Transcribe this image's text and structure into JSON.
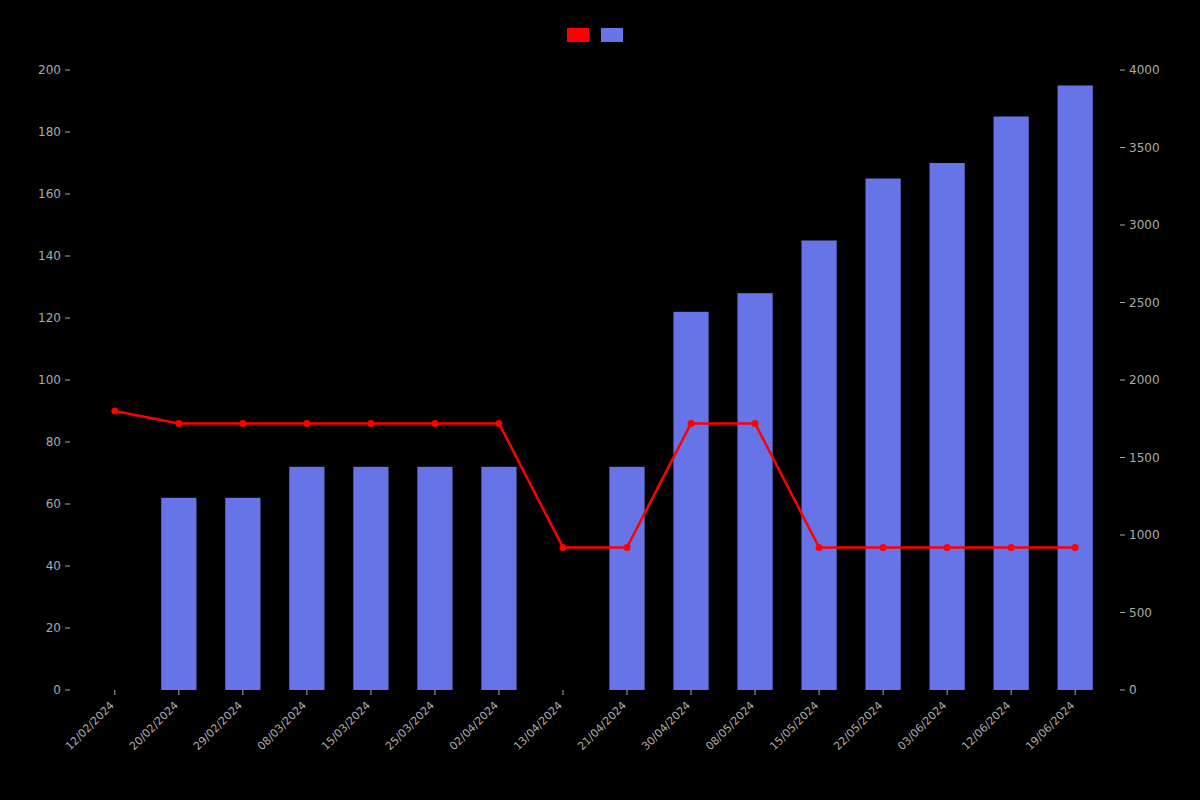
{
  "chart_data": {
    "type": "bar",
    "categories": [
      "12/02/2024",
      "20/02/2024",
      "29/02/2024",
      "08/03/2024",
      "15/03/2024",
      "25/03/2024",
      "02/04/2024",
      "13/04/2024",
      "21/04/2024",
      "30/04/2024",
      "08/05/2024",
      "15/05/2024",
      "22/05/2024",
      "03/06/2024",
      "12/06/2024",
      "19/06/2024"
    ],
    "series": [
      {
        "type": "bar",
        "color": "#6674E8",
        "values": [
          0,
          62,
          62,
          72,
          72,
          72,
          72,
          0,
          72,
          122,
          128,
          145,
          165,
          170,
          185,
          195
        ]
      },
      {
        "type": "line",
        "color": "#FF0000",
        "marker": "circle",
        "values": [
          90,
          86,
          86,
          86,
          86,
          86,
          86,
          46,
          46,
          86,
          86,
          46,
          46,
          46,
          46,
          46
        ]
      }
    ],
    "ylim": [
      0,
      200
    ],
    "yticks": [
      0,
      20,
      40,
      60,
      80,
      100,
      120,
      140,
      160,
      180,
      200
    ],
    "y2lim": [
      0,
      4000
    ],
    "y2ticks": [
      0,
      500,
      1000,
      1500,
      2000,
      2500,
      3000,
      3500,
      4000
    ],
    "grid": false,
    "legend": "top"
  }
}
